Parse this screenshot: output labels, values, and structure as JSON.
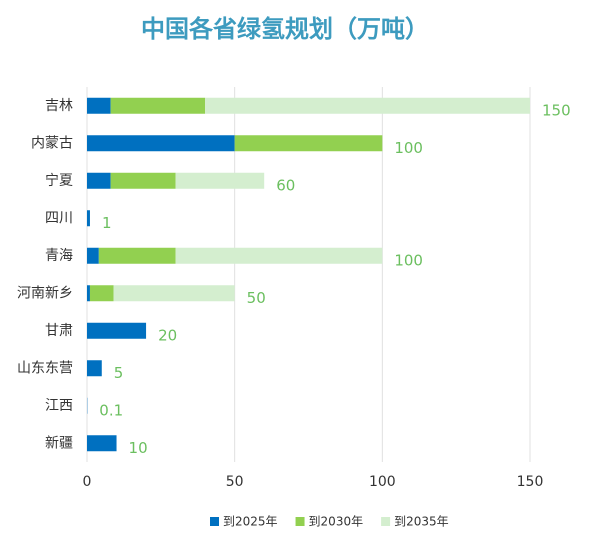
{
  "chart_data": {
    "type": "bar",
    "orientation": "horizontal",
    "stacked": true,
    "title": "中国各省绿氢规划（万吨）",
    "categories": [
      "吉林",
      "内蒙古",
      "宁夏",
      "四川",
      "青海",
      "河南新乡",
      "甘肃",
      "山东东营",
      "江西",
      "新疆"
    ],
    "series": [
      {
        "name": "到2025年",
        "color": "#0070c0",
        "values": [
          8,
          50,
          8,
          1,
          4,
          1,
          20,
          5,
          0.1,
          10
        ]
      },
      {
        "name": "到2030年",
        "color": "#92d050",
        "values": [
          32,
          50,
          22,
          0,
          26,
          8,
          0,
          0,
          0,
          0
        ]
      },
      {
        "name": "到2035年",
        "color": "#d4eecf",
        "values": [
          110,
          0,
          30,
          0,
          70,
          41,
          0,
          0,
          0,
          0
        ]
      }
    ],
    "totals": [
      150,
      100,
      60,
      1,
      100,
      50,
      20,
      5,
      0.1,
      10
    ],
    "xlim": [
      0,
      150
    ],
    "xticks": [
      0,
      50,
      100,
      150
    ],
    "grid": true,
    "legend": "bottom"
  }
}
